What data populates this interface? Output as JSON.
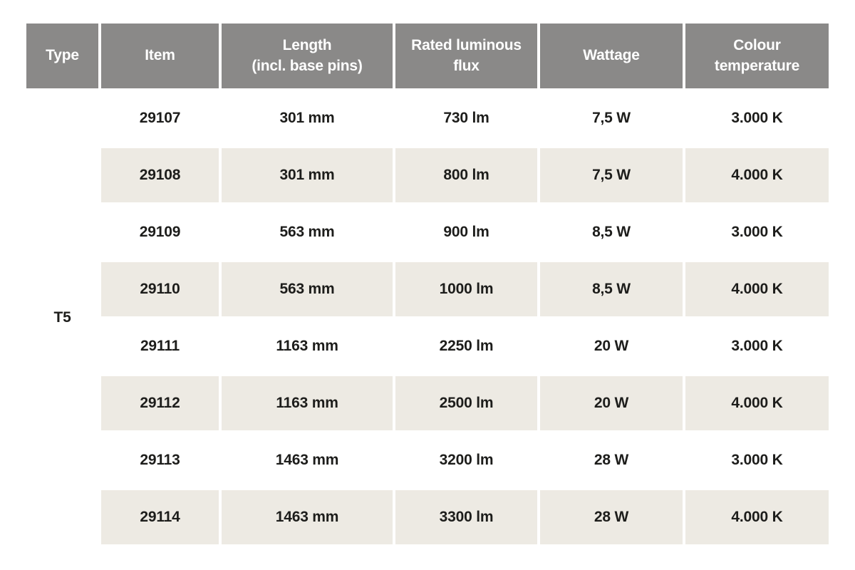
{
  "table": {
    "columns": [
      {
        "label": "Type"
      },
      {
        "label": "Item"
      },
      {
        "label": "Length\n(incl. base pins)"
      },
      {
        "label": "Rated luminous\nflux"
      },
      {
        "label": "Wattage"
      },
      {
        "label": "Colour\ntemperature"
      }
    ],
    "type_value": "T5",
    "rows": [
      {
        "item": "29107",
        "length": "301 mm",
        "flux": "730 lm",
        "wattage": "7,5 W",
        "colour_temp": "3.000 K"
      },
      {
        "item": "29108",
        "length": "301 mm",
        "flux": "800 lm",
        "wattage": "7,5 W",
        "colour_temp": "4.000 K"
      },
      {
        "item": "29109",
        "length": "563 mm",
        "flux": "900 lm",
        "wattage": "8,5 W",
        "colour_temp": "3.000 K"
      },
      {
        "item": "29110",
        "length": "563 mm",
        "flux": "1000 lm",
        "wattage": "8,5 W",
        "colour_temp": "4.000 K"
      },
      {
        "item": "29111",
        "length": "1163 mm",
        "flux": "2250 lm",
        "wattage": "20 W",
        "colour_temp": "3.000 K"
      },
      {
        "item": "29112",
        "length": "1163 mm",
        "flux": "2500 lm",
        "wattage": "20 W",
        "colour_temp": "4.000 K"
      },
      {
        "item": "29113",
        "length": "1463 mm",
        "flux": "3200 lm",
        "wattage": "28 W",
        "colour_temp": "3.000 K"
      },
      {
        "item": "29114",
        "length": "1463 mm",
        "flux": "3300 lm",
        "wattage": "28 W",
        "colour_temp": "4.000 K"
      }
    ],
    "colors": {
      "header_bg": "#8a8988",
      "header_text": "#ffffff",
      "row_bg": "#ffffff",
      "row_alt_bg": "#edeae3",
      "body_text": "#1d1d1b"
    }
  }
}
